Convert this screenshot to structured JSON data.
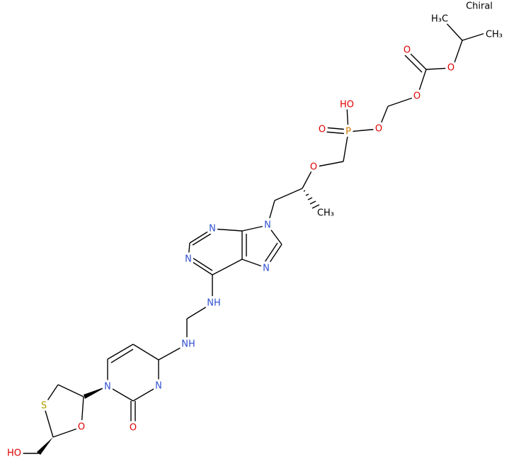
{
  "labels": [
    "Chiral",
    "H₃C",
    "CH₃",
    "O",
    "O",
    "O",
    "HO",
    "O",
    "P",
    "O",
    "O",
    "CH₃",
    "N",
    "N",
    "N",
    "N",
    "NH",
    "NH",
    "N",
    "N",
    "O",
    "O",
    "S",
    "HO"
  ]
}
